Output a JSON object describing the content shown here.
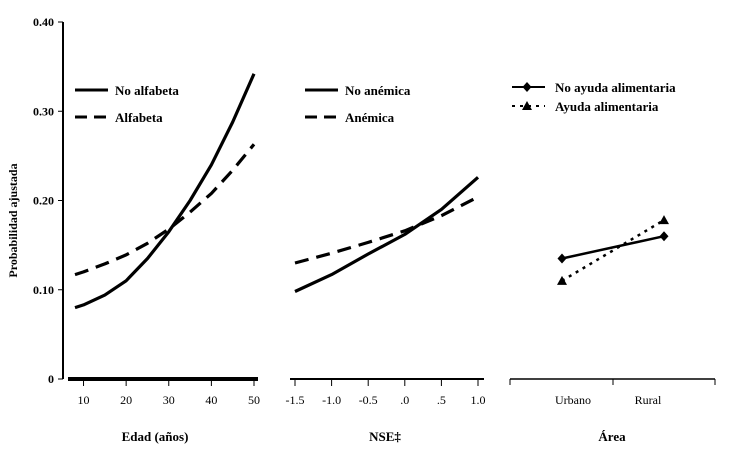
{
  "chart_data": [
    {
      "type": "line",
      "xlabel": "Edad (años)",
      "ylabel": "Probabilidad ajustada",
      "ylim": [
        0,
        0.4
      ],
      "yticks": [
        "0",
        "0.10",
        "0.20",
        "0.30",
        "0.40"
      ],
      "xlim": [
        8,
        50
      ],
      "xticks": [
        "10",
        "20",
        "30",
        "40",
        "50"
      ],
      "legend_position": "top-left",
      "series": [
        {
          "name": "No alfabeta",
          "style": "solid",
          "x": [
            8,
            10,
            15,
            20,
            25,
            30,
            35,
            40,
            45,
            50
          ],
          "y": [
            0.08,
            0.083,
            0.094,
            0.11,
            0.135,
            0.165,
            0.2,
            0.24,
            0.288,
            0.342
          ]
        },
        {
          "name": "Alfabeta",
          "style": "dashed",
          "x": [
            8,
            10,
            15,
            20,
            25,
            30,
            35,
            40,
            45,
            50
          ],
          "y": [
            0.117,
            0.12,
            0.129,
            0.139,
            0.152,
            0.168,
            0.187,
            0.208,
            0.234,
            0.263
          ]
        }
      ]
    },
    {
      "type": "line",
      "xlabel": "NSE‡",
      "xlim": [
        -1.5,
        1.0
      ],
      "xticks": [
        "-1.5",
        "-1.0",
        "-0.5",
        ".0",
        ".5",
        "1.0"
      ],
      "legend_position": "top-left",
      "series": [
        {
          "name": "No anémica",
          "style": "solid",
          "x": [
            -1.5,
            -1.0,
            -0.5,
            0.0,
            0.5,
            1.0
          ],
          "y": [
            0.098,
            0.117,
            0.14,
            0.162,
            0.19,
            0.226
          ]
        },
        {
          "name": "Anémica",
          "style": "dashed",
          "x": [
            -1.5,
            -1.0,
            -0.5,
            0.0,
            0.5,
            1.0
          ],
          "y": [
            0.13,
            0.141,
            0.153,
            0.166,
            0.183,
            0.204
          ]
        }
      ]
    },
    {
      "type": "line",
      "xlabel": "Área",
      "categories": [
        "Urbano",
        "Rural"
      ],
      "legend_position": "top-left",
      "series": [
        {
          "name": "No ayuda alimentaria",
          "style": "solid",
          "marker": "diamond",
          "values": [
            0.135,
            0.16
          ]
        },
        {
          "name": "Ayuda alimentaria",
          "style": "dotted",
          "marker": "triangle",
          "values": [
            0.11,
            0.178
          ]
        }
      ]
    }
  ]
}
